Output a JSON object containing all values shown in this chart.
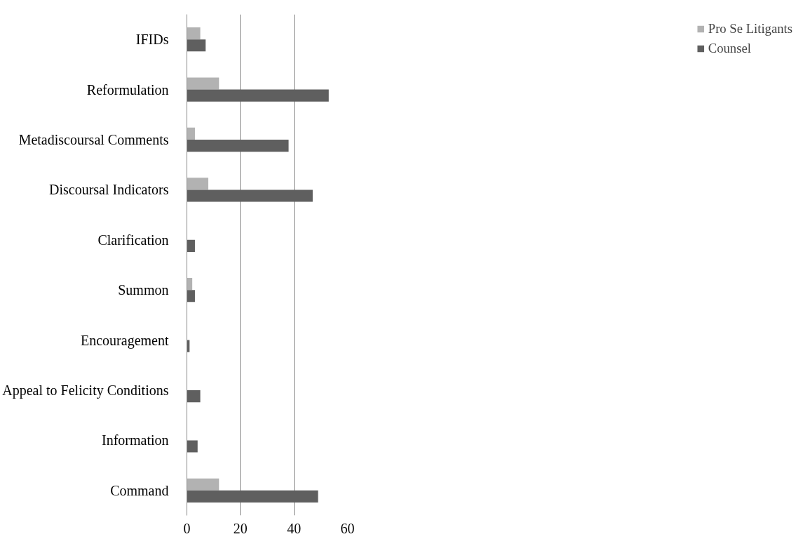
{
  "chart_data": {
    "type": "bar",
    "orientation": "horizontal",
    "categories": [
      "IFIDs",
      "Reformulation",
      "Metadiscoursal Comments",
      "Discoursal Indicators",
      "Clarification",
      "Summon",
      "Encouragement",
      "Appeal to Felicity Conditions",
      "Information",
      "Command"
    ],
    "series": [
      {
        "name": "Pro Se Litigants",
        "color": "#b2b2b2",
        "values": [
          5,
          12,
          3,
          8,
          0,
          2,
          0,
          0,
          0,
          12
        ]
      },
      {
        "name": "Counsel",
        "color": "#5f5f5f",
        "values": [
          7,
          53,
          38,
          47,
          3,
          3,
          1,
          5,
          4,
          49
        ]
      }
    ],
    "xlim": [
      0,
      60
    ],
    "xticks": [
      0,
      20,
      40,
      60
    ],
    "grid": "x",
    "legend": "right"
  }
}
